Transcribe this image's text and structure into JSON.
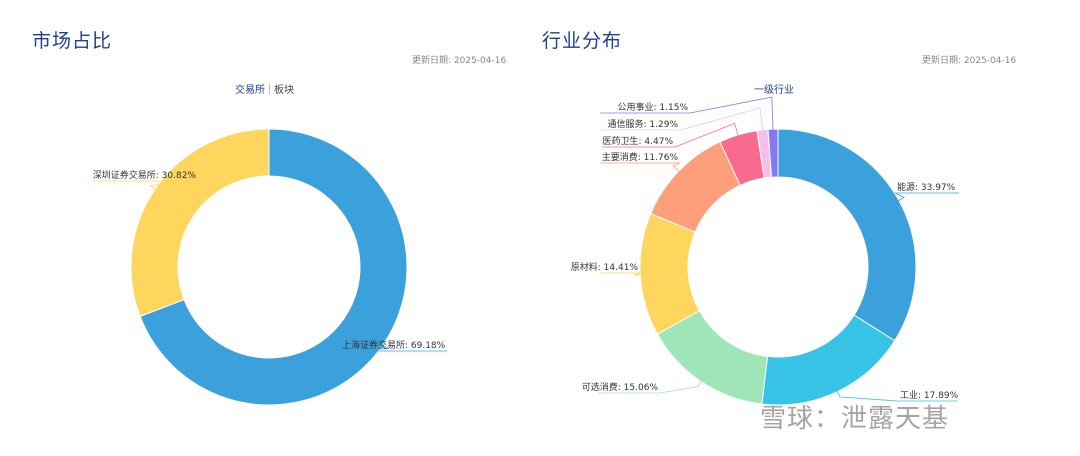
{
  "panels": [
    {
      "title": "市场占比",
      "update_date": "更新日期: 2025-04-16",
      "tabs": [
        {
          "label": "交易所",
          "active": true
        },
        {
          "label": "板块",
          "active": false
        }
      ]
    },
    {
      "title": "行业分布",
      "update_date": "更新日期: 2025-04-16",
      "tabs": [
        {
          "label": "一级行业",
          "active": true
        }
      ]
    }
  ],
  "watermark": "雪球：泄露天基",
  "chart_data": [
    {
      "type": "pie",
      "title": "",
      "labels": [
        "上海证券交易所",
        "深圳证券交易所"
      ],
      "values": [
        69.18,
        30.82
      ],
      "data_labels": [
        "上海证券交易所: 69.18%",
        "深圳证券交易所: 30.82%"
      ],
      "colors": [
        "#3ba1dc",
        "#fed55d"
      ],
      "donut": true
    },
    {
      "type": "pie",
      "title": "",
      "labels": [
        "能源",
        "工业",
        "可选消费",
        "原材料",
        "主要消费",
        "医药卫生",
        "通信服务",
        "公用事业"
      ],
      "values": [
        33.97,
        17.89,
        15.06,
        14.41,
        11.76,
        4.47,
        1.29,
        1.15
      ],
      "data_labels": [
        "能源: 33.97%",
        "工业: 17.89%",
        "可选消费: 15.06%",
        "原材料: 14.41%",
        "主要消费: 11.76%",
        "医药卫生: 4.47%",
        "通信服务: 1.29%",
        "公用事业: 1.15%"
      ],
      "colors": [
        "#3ba1dc",
        "#36c3e6",
        "#9ee6b8",
        "#fed55d",
        "#fe9f7b",
        "#f96b8e",
        "#f3c0ec",
        "#8678f3"
      ],
      "donut": true
    }
  ]
}
